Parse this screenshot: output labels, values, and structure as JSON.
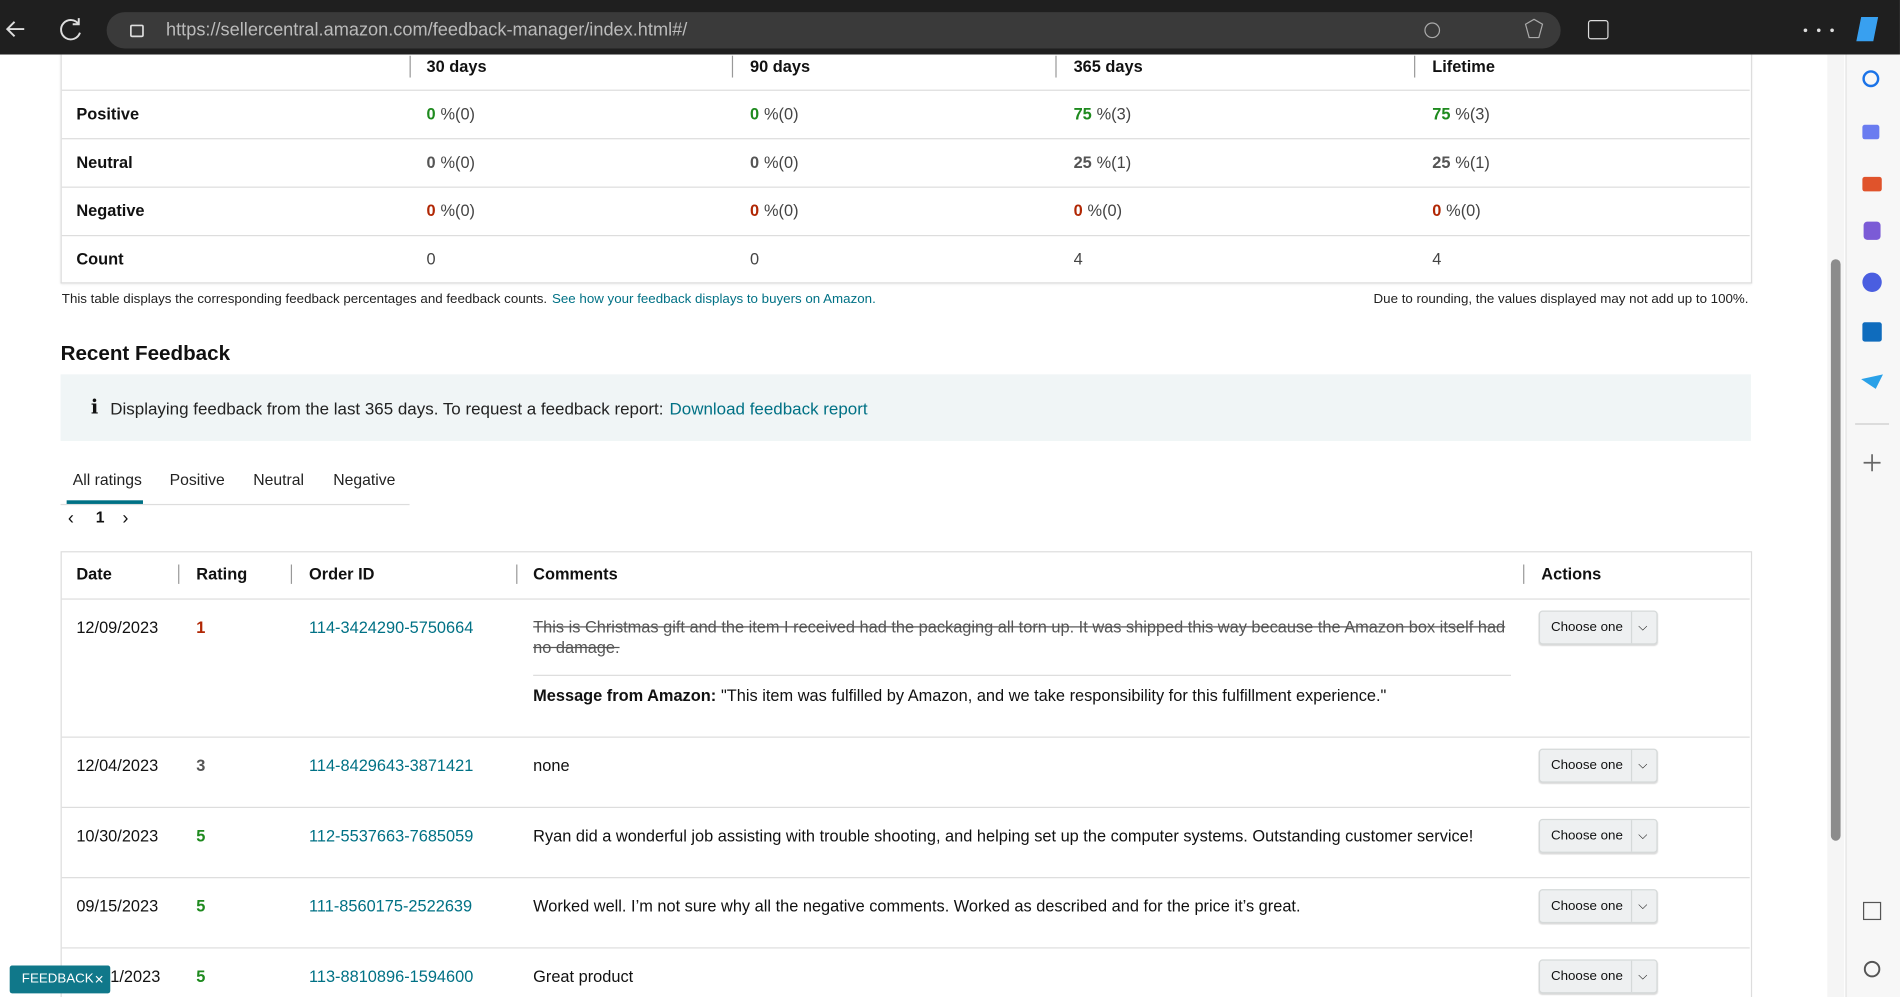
{
  "browser": {
    "url": "https://sellercentral.amazon.com/feedback-manager/index.html#/"
  },
  "summary": {
    "columns": [
      "30 days",
      "90 days",
      "365 days",
      "Lifetime"
    ],
    "rows": [
      {
        "label": "Positive",
        "color": "#1e8a1e",
        "cells": [
          [
            "0",
            "%(0)"
          ],
          [
            "0",
            "%(0)"
          ],
          [
            "75",
            "%(3)"
          ],
          [
            "75",
            "%(3)"
          ]
        ]
      },
      {
        "label": "Neutral",
        "color": "#555555",
        "cells": [
          [
            "0",
            "%(0)"
          ],
          [
            "0",
            "%(0)"
          ],
          [
            "25",
            "%(1)"
          ],
          [
            "25",
            "%(1)"
          ]
        ]
      },
      {
        "label": "Negative",
        "color": "#b12704",
        "cells": [
          [
            "0",
            "%(0)"
          ],
          [
            "0",
            "%(0)"
          ],
          [
            "0",
            "%(0)"
          ],
          [
            "0",
            "%(0)"
          ]
        ]
      },
      {
        "label": "Count",
        "color": "#333333",
        "cells": [
          [
            "0"
          ],
          [
            "0"
          ],
          [
            "4"
          ],
          [
            "4"
          ]
        ]
      }
    ],
    "note": "This table displays the corresponding feedback percentages and feedback counts.",
    "note_link": "See how your feedback displays to buyers on Amazon.",
    "rounding_note": "Due to rounding, the values displayed may not add up to 100%."
  },
  "recent": {
    "title": "Recent Feedback",
    "info": "Displaying feedback from the last 365 days. To request a feedback report:",
    "info_link": "Download feedback report",
    "tabs": [
      "All ratings",
      "Positive",
      "Neutral",
      "Negative"
    ],
    "page": "1",
    "headers": [
      "Date",
      "Rating",
      "Order ID",
      "Comments",
      "Actions"
    ],
    "rows": [
      {
        "date": "12/09/2023",
        "rating": "1",
        "rating_color": "#b12704",
        "order": "114-3424290-5750664",
        "comment": "This is Christmas gift and the item I received had the packaging all torn up. It was shipped this way because the Amazon box itself had no damage.",
        "struck": true,
        "message_label": "Message from Amazon:",
        "message": "\"This item was fulfilled by Amazon, and we take responsibility for this fulfillment experience.\"",
        "action": "Choose one"
      },
      {
        "date": "12/04/2023",
        "rating": "3",
        "rating_color": "#555555",
        "order": "114-8429643-3871421",
        "comment": "none",
        "action": "Choose one"
      },
      {
        "date": "10/30/2023",
        "rating": "5",
        "rating_color": "#1e8a1e",
        "order": "112-5537663-7685059",
        "comment": "Ryan did a wonderful job assisting with trouble shooting, and helping set up the computer systems. Outstanding customer service!",
        "action": "Choose one"
      },
      {
        "date": "09/15/2023",
        "rating": "5",
        "rating_color": "#1e8a1e",
        "order": "111-8560175-2522639",
        "comment": "Worked well. I’m not sure why all the negative comments. Worked as described and for the price it’s great.",
        "action": "Choose one"
      },
      {
        "date": "1/2023",
        "rating": "5",
        "rating_color": "#1e8a1e",
        "order": "113-8810896-1594600",
        "comment": "Great product",
        "action": "Choose one"
      }
    ]
  },
  "feedback_button": "FEEDBACK"
}
